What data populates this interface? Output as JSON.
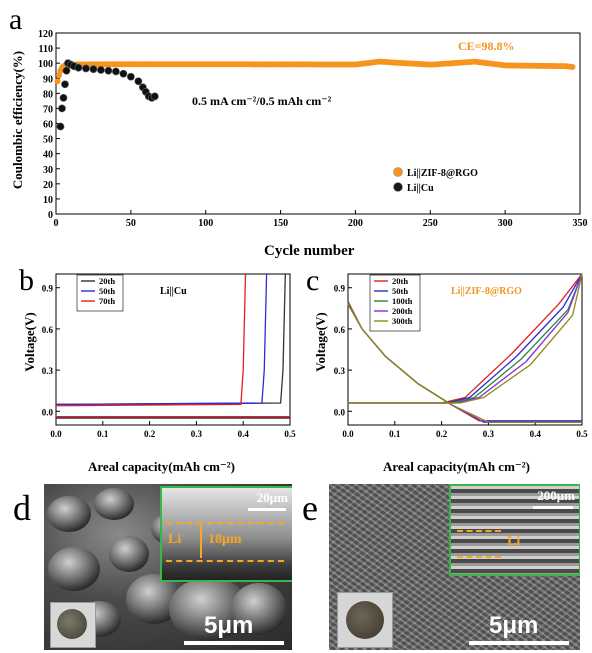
{
  "panel_a": {
    "label": "a",
    "ylabel": "Coulombic efficiency(%)",
    "xlabel": "Cycle number",
    "condition_text": "0.5 mA cm⁻²/0.5 mAh cm⁻²",
    "ce_annotation": "CE=98.8%",
    "colors": {
      "zif": "#f7941d",
      "cu": "#1a1a1a",
      "annotation": "#f7941d"
    }
  },
  "panel_b": {
    "label": "b",
    "ylabel": "Voltage(V)",
    "xlabel": "Areal capacity(mAh cm⁻²)",
    "title": "Li||Cu"
  },
  "panel_c": {
    "label": "c",
    "ylabel": "Voltage(V)",
    "xlabel": "Areal capacity(mAh cm⁻²)",
    "title": "Li||ZIF-8@RGO",
    "title_color": "#f7941d"
  },
  "panel_d": {
    "label": "d",
    "scale_main": "5μm",
    "scale_inset": "20μm",
    "inset_thickness": "18μm",
    "inset_li": "Li"
  },
  "panel_e": {
    "label": "e",
    "scale_main": "5μm",
    "scale_inset": "200μm",
    "inset_li": "Li"
  },
  "chart_data": [
    {
      "id": "a",
      "type": "scatter",
      "xlabel": "Cycle number",
      "ylabel": "Coulombic efficiency(%)",
      "xlim": [
        0,
        350
      ],
      "ylim": [
        0,
        120
      ],
      "xticks": [
        0,
        50,
        100,
        150,
        200,
        250,
        300,
        350
      ],
      "yticks": [
        0,
        10,
        20,
        30,
        40,
        50,
        60,
        70,
        80,
        90,
        100,
        110,
        120
      ],
      "legend_position": "center-right",
      "series": [
        {
          "name": "Li||ZIF-8@RGO",
          "color": "#f7941d",
          "x": [
            1,
            2,
            3,
            4,
            5,
            6,
            8,
            10,
            20,
            50,
            100,
            150,
            200,
            216,
            250,
            280,
            300,
            340,
            345
          ],
          "y": [
            88,
            92,
            95,
            97,
            98,
            98.5,
            99,
            99,
            99.2,
            99.3,
            99.3,
            99.2,
            99.1,
            101,
            99,
            101,
            98.5,
            98,
            97.5
          ]
        },
        {
          "name": "Li||Cu",
          "color": "#1a1a1a",
          "x": [
            3,
            4,
            5,
            6,
            7,
            8,
            10,
            12,
            15,
            20,
            25,
            30,
            35,
            40,
            45,
            50,
            55,
            58,
            60,
            62,
            64,
            66
          ],
          "y": [
            58,
            70,
            77,
            86,
            95,
            100,
            99,
            98,
            97,
            96.5,
            96,
            95.5,
            95,
            94.5,
            93,
            91,
            88,
            84,
            81,
            78,
            77,
            78
          ]
        }
      ]
    },
    {
      "id": "b",
      "type": "line",
      "xlabel": "Areal capacity(mAh cm⁻²)",
      "ylabel": "Voltage(V)",
      "xlim": [
        0,
        0.5
      ],
      "ylim": [
        -0.1,
        1.0
      ],
      "xticks": [
        0.0,
        0.1,
        0.2,
        0.3,
        0.4,
        0.5
      ],
      "yticks": [
        0.0,
        0.3,
        0.6,
        0.9
      ],
      "legend_position": "top-right",
      "series": [
        {
          "name": "20th",
          "color": "#333333",
          "charge": {
            "x": [
              0,
              0.48,
              0.485,
              0.49
            ],
            "y": [
              0.05,
              0.06,
              0.3,
              1.0
            ]
          },
          "discharge": {
            "x": [
              0,
              0.5
            ],
            "y": [
              -0.05,
              -0.05
            ]
          }
        },
        {
          "name": "50th",
          "color": "#2b2bd9",
          "charge": {
            "x": [
              0,
              0.44,
              0.445,
              0.45
            ],
            "y": [
              0.05,
              0.06,
              0.3,
              1.0
            ]
          },
          "discharge": {
            "x": [
              0,
              0.5
            ],
            "y": [
              -0.04,
              -0.04
            ]
          }
        },
        {
          "name": "70th",
          "color": "#e02020",
          "charge": {
            "x": [
              0,
              0.395,
              0.4,
              0.405
            ],
            "y": [
              0.04,
              0.05,
              0.3,
              1.0
            ]
          },
          "discharge": {
            "x": [
              0,
              0.5
            ],
            "y": [
              -0.04,
              -0.04
            ]
          }
        }
      ]
    },
    {
      "id": "c",
      "type": "line",
      "xlabel": "Areal capacity(mAh cm⁻²)",
      "ylabel": "Voltage(V)",
      "xlim": [
        0,
        0.5
      ],
      "ylim": [
        -0.1,
        1.0
      ],
      "xticks": [
        0.0,
        0.1,
        0.2,
        0.3,
        0.4,
        0.5
      ],
      "yticks": [
        0.0,
        0.3,
        0.6,
        0.9
      ],
      "legend_position": "top-left",
      "series": [
        {
          "name": "20th",
          "color": "#e02020",
          "discharge": {
            "x": [
              0,
              0.03,
              0.08,
              0.15,
              0.22,
              0.28,
              0.5
            ],
            "y": [
              0.8,
              0.6,
              0.4,
              0.2,
              0.05,
              -0.07,
              -0.07
            ]
          },
          "charge": {
            "x": [
              0,
              0.2,
              0.25,
              0.35,
              0.45,
              0.5
            ],
            "y": [
              0.06,
              0.06,
              0.1,
              0.42,
              0.78,
              1.0
            ]
          }
        },
        {
          "name": "50th",
          "color": "#2b2bd9",
          "discharge": {
            "x": [
              0,
              0.03,
              0.08,
              0.15,
              0.22,
              0.285,
              0.5
            ],
            "y": [
              0.79,
              0.6,
              0.4,
              0.2,
              0.05,
              -0.07,
              -0.07
            ]
          },
          "charge": {
            "x": [
              0,
              0.21,
              0.26,
              0.36,
              0.46,
              0.5
            ],
            "y": [
              0.06,
              0.06,
              0.1,
              0.4,
              0.76,
              1.0
            ]
          }
        },
        {
          "name": "100th",
          "color": "#2a8a2a",
          "discharge": {
            "x": [
              0,
              0.03,
              0.08,
              0.15,
              0.22,
              0.29,
              0.5
            ],
            "y": [
              0.79,
              0.6,
              0.4,
              0.2,
              0.05,
              -0.08,
              -0.08
            ]
          },
          "charge": {
            "x": [
              0,
              0.22,
              0.27,
              0.37,
              0.47,
              0.5
            ],
            "y": [
              0.06,
              0.06,
              0.1,
              0.38,
              0.74,
              1.0
            ]
          }
        },
        {
          "name": "200th",
          "color": "#8b2be2",
          "discharge": {
            "x": [
              0,
              0.03,
              0.08,
              0.15,
              0.22,
              0.29,
              0.5
            ],
            "y": [
              0.78,
              0.6,
              0.4,
              0.2,
              0.05,
              -0.08,
              -0.08
            ]
          },
          "charge": {
            "x": [
              0,
              0.23,
              0.28,
              0.38,
              0.47,
              0.5
            ],
            "y": [
              0.06,
              0.06,
              0.1,
              0.36,
              0.72,
              1.0
            ]
          }
        },
        {
          "name": "300th",
          "color": "#8c8c14",
          "discharge": {
            "x": [
              0,
              0.03,
              0.08,
              0.15,
              0.22,
              0.3,
              0.5
            ],
            "y": [
              0.78,
              0.6,
              0.4,
              0.2,
              0.05,
              -0.08,
              -0.08
            ]
          },
          "charge": {
            "x": [
              0,
              0.24,
              0.29,
              0.39,
              0.48,
              0.5
            ],
            "y": [
              0.06,
              0.06,
              0.1,
              0.34,
              0.7,
              1.0
            ]
          }
        }
      ]
    }
  ]
}
